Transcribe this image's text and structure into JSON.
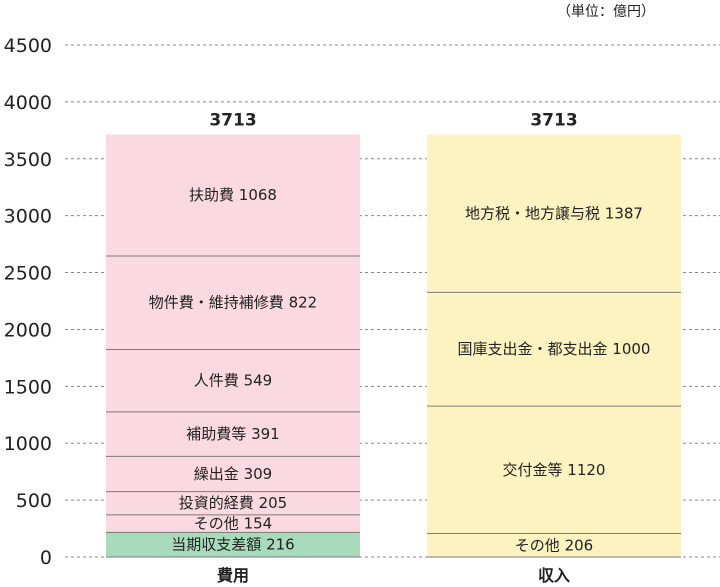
{
  "chart_data": {
    "type": "bar",
    "stacked": true,
    "unit_label": "（単位：億円）",
    "ylim": [
      0,
      4500
    ],
    "y_ticks": [
      0,
      500,
      1000,
      1500,
      2000,
      2500,
      3000,
      3500,
      4000,
      4500
    ],
    "grid": "horizontal dashed",
    "categories": [
      {
        "name": "費用",
        "total": 3713,
        "segments": [
          {
            "label": "当期収支差額 216",
            "value": 216,
            "color": "#a8dbbb"
          },
          {
            "label": "その他 154",
            "value": 154,
            "color": "#fadae0"
          },
          {
            "label": "投資的経費 205",
            "value": 205,
            "color": "#fadae0"
          },
          {
            "label": "繰出金 309",
            "value": 309,
            "color": "#fadae0"
          },
          {
            "label": "補助費等 391",
            "value": 391,
            "color": "#fadae0"
          },
          {
            "label": "人件費 549",
            "value": 549,
            "color": "#fadae0"
          },
          {
            "label": "物件費・維持補修費 822",
            "value": 822,
            "color": "#fadae0"
          },
          {
            "label": "扶助費 1068",
            "value": 1068,
            "color": "#fadae0"
          }
        ]
      },
      {
        "name": "収入",
        "total": 3713,
        "segments": [
          {
            "label": "その他 206",
            "value": 206,
            "color": "#fdf3c0"
          },
          {
            "label": "交付金等 1120",
            "value": 1120,
            "color": "#fdf3c0"
          },
          {
            "label": "国庫支出金・都支出金 1000",
            "value": 1000,
            "color": "#fdf3c0"
          },
          {
            "label": "地方税・地方譲与税 1387",
            "value": 1387,
            "color": "#fdf3c0"
          }
        ]
      }
    ],
    "colors": {
      "divider": "#7a7a7a",
      "grid": "#888888"
    }
  }
}
